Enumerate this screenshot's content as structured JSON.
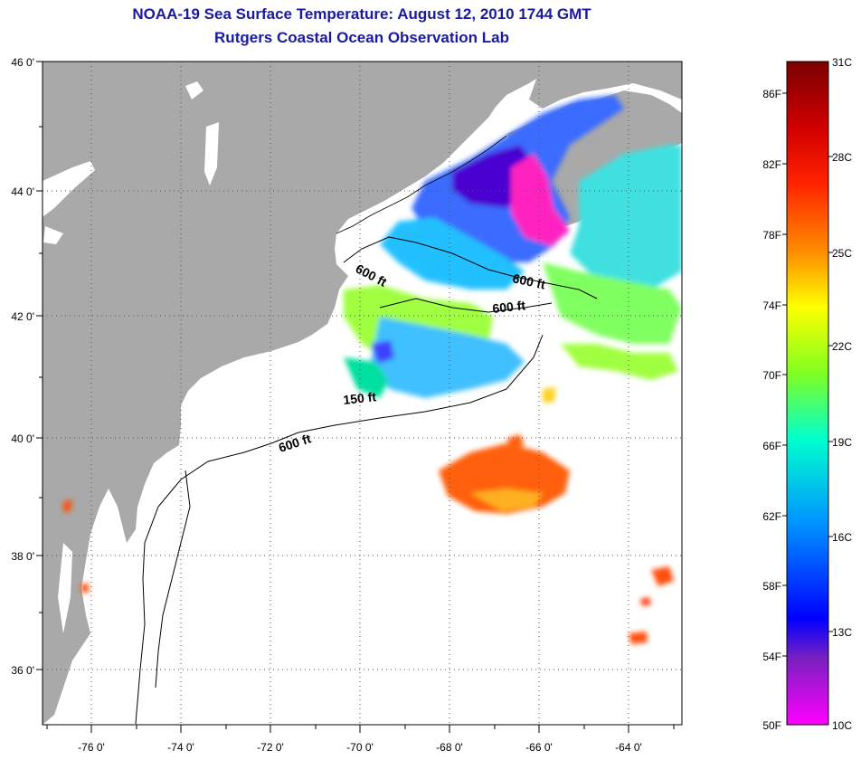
{
  "title": "NOAA-19 Sea Surface Temperature:  August 12, 2010 1744 GMT",
  "subtitle": "Rutgers Coastal Ocean Observation Lab",
  "map": {
    "lat_labels": [
      "46 0'",
      "44 0'",
      "42 0'",
      "40 0'",
      "38 0'",
      "36 0'"
    ],
    "lon_labels": [
      "-76 0'",
      "-74 0'",
      "-72 0'",
      "-70 0'",
      "-68 0'",
      "-66 0'",
      "-64 0'"
    ],
    "depth_labels": [
      "600 ft",
      "600 ft",
      "600 ft",
      "150 ft",
      "600 ft"
    ],
    "colors": {
      "land": "#a9a9a9",
      "water": "#ffffff",
      "grid": "#555555"
    }
  },
  "colorbar": {
    "fahrenheit": [
      "86F",
      "82F",
      "78F",
      "74F",
      "70F",
      "66F",
      "62F",
      "58F",
      "54F",
      "50F"
    ],
    "celsius": [
      "31C",
      "28C",
      "25C",
      "22C",
      "19C",
      "16C",
      "13C",
      "10C"
    ],
    "gradient": [
      "#7a0000",
      "#ff0000",
      "#ff8000",
      "#ffff00",
      "#80ff00",
      "#00ffcc",
      "#0080ff",
      "#0000ff",
      "#8000c0",
      "#ff00ff"
    ]
  }
}
